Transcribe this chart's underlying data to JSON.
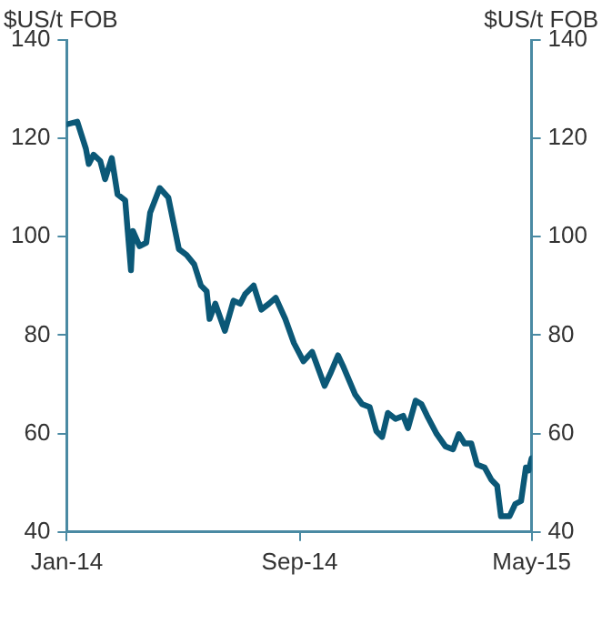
{
  "chart_data": {
    "type": "line",
    "ylabel": "$US/t FOB",
    "y2label": "$US/t FOB",
    "x": [
      "2014-01-02",
      "2014-01-12",
      "2014-01-21",
      "2014-01-24",
      "2014-01-29",
      "2014-02-05",
      "2014-02-10",
      "2014-02-17",
      "2014-02-23",
      "2014-03-03",
      "2014-03-09",
      "2014-03-11",
      "2014-03-18",
      "2014-03-25",
      "2014-03-29",
      "2014-04-08",
      "2014-04-17",
      "2014-04-28",
      "2014-05-06",
      "2014-05-14",
      "2014-05-21",
      "2014-05-27",
      "2014-05-30",
      "2014-06-05",
      "2014-06-15",
      "2014-06-24",
      "2014-07-01",
      "2014-07-06",
      "2014-07-15",
      "2014-07-23",
      "2014-07-31",
      "2014-08-07",
      "2014-08-17",
      "2014-08-26",
      "2014-09-05",
      "2014-09-14",
      "2014-09-27",
      "2014-10-03",
      "2014-10-11",
      "2014-10-17",
      "2014-10-29",
      "2014-11-05",
      "2014-11-13",
      "2014-11-20",
      "2014-11-26",
      "2014-12-02",
      "2014-12-10",
      "2014-12-18",
      "2014-12-23",
      "2014-12-31",
      "2015-01-06",
      "2015-01-12",
      "2015-01-22",
      "2015-01-31",
      "2015-02-08",
      "2015-02-14",
      "2015-02-20",
      "2015-02-27",
      "2015-03-05",
      "2015-03-13",
      "2015-03-20",
      "2015-03-26",
      "2015-03-30",
      "2015-04-08",
      "2015-04-14",
      "2015-04-20",
      "2015-04-25",
      "2015-04-28",
      "2015-05-01"
    ],
    "series": [
      {
        "color": "#0b5877",
        "values": [
          122.9,
          123.4,
          117.9,
          114.8,
          116.7,
          115.4,
          111.7,
          116,
          108.6,
          107.4,
          93.2,
          101.2,
          98.1,
          98.8,
          104.9,
          109.9,
          108,
          97.5,
          96.3,
          94.4,
          90.1,
          88.9,
          83.3,
          86.4,
          80.9,
          87,
          86.4,
          88.3,
          90.1,
          85.2,
          86.4,
          87.6,
          83.3,
          78.4,
          74.7,
          76.6,
          69.7,
          72.2,
          75.9,
          73.4,
          67.9,
          66,
          65.4,
          60.5,
          59.3,
          64.2,
          63,
          63.6,
          61.1,
          66.7,
          66,
          63.6,
          59.9,
          57.4,
          56.8,
          59.9,
          58,
          58,
          53.7,
          53.1,
          50.6,
          49.4,
          43.2,
          43.2,
          45.7,
          46.3,
          53.1,
          52.5,
          55
        ]
      }
    ],
    "xlim": [
      "2014-01-01",
      "2015-05-01"
    ],
    "xticks": [
      {
        "value": "2014-01-01",
        "label": "Jan-14"
      },
      {
        "value": "2014-09-01",
        "label": "Sep-14"
      },
      {
        "value": "2015-05-01",
        "label": "May-15"
      }
    ],
    "ylim": [
      40,
      140
    ],
    "yticks": [
      40,
      60,
      80,
      100,
      120,
      140
    ],
    "y2lim": [
      40,
      140
    ],
    "y2ticks": [
      40,
      60,
      80,
      100,
      120,
      140
    ],
    "grid": false,
    "legend": false,
    "marker": "none",
    "line_style": "solid"
  }
}
